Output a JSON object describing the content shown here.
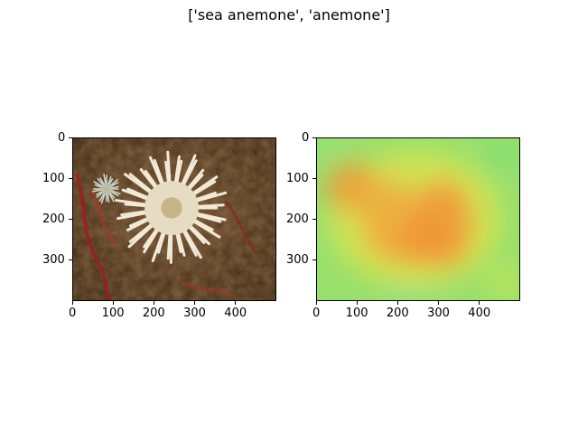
{
  "figure": {
    "title": "['sea anemone', 'anemone']"
  },
  "panels": [
    {
      "name": "original-image",
      "x_ticks": [
        "0",
        "100",
        "200",
        "300",
        "400"
      ],
      "y_ticks": [
        "0",
        "100",
        "200",
        "300"
      ],
      "x_tick_values": [
        0,
        100,
        200,
        300,
        400
      ],
      "y_tick_values": [
        0,
        100,
        200,
        300
      ],
      "x_range": [
        0,
        500
      ],
      "y_range": [
        0,
        400
      ],
      "colors": {
        "background": "#5a3a22",
        "body": "#efe6d2",
        "center": "#d8c8a4",
        "accent": "#9a2020"
      }
    },
    {
      "name": "saliency-heatmap",
      "x_ticks": [
        "0",
        "100",
        "200",
        "300",
        "400"
      ],
      "y_ticks": [
        "0",
        "100",
        "200",
        "300"
      ],
      "x_tick_values": [
        0,
        100,
        200,
        300,
        400
      ],
      "y_tick_values": [
        0,
        100,
        200,
        300
      ],
      "x_range": [
        0,
        500
      ],
      "y_range": [
        0,
        400
      ],
      "colors": {
        "low": "#7ee06a",
        "mid": "#c8e84a",
        "high": "#f08a2a"
      }
    }
  ]
}
